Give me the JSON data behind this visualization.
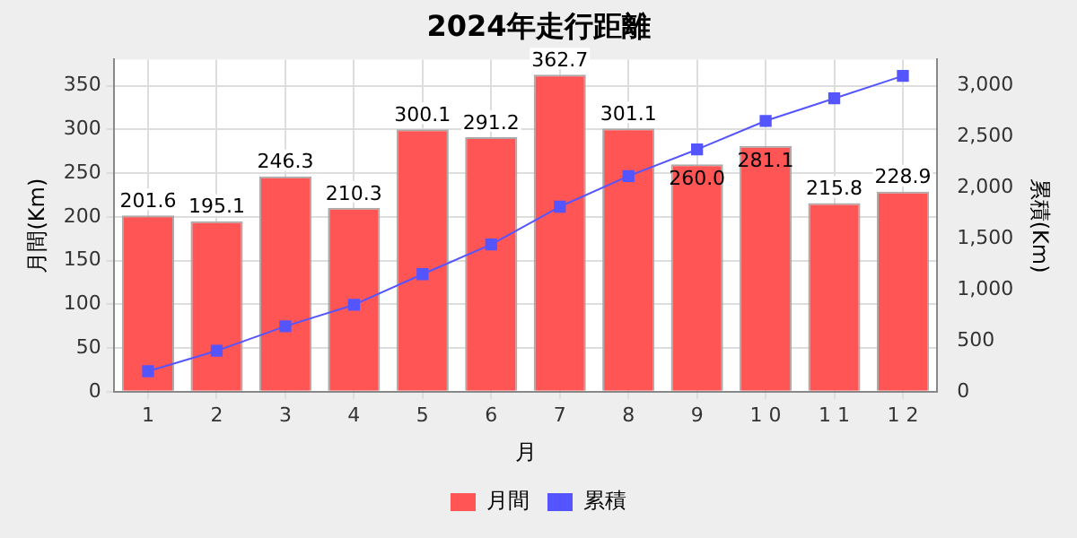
{
  "chart_data": {
    "type": "bar",
    "title": "2024年走行距離",
    "xlabel": "月",
    "ylabel": "月間(Km)",
    "y2label": "累積(Km)",
    "categories": [
      "1",
      "2",
      "3",
      "4",
      "5",
      "6",
      "7",
      "8",
      "9",
      "1 0",
      "1 1",
      "1 2"
    ],
    "series": [
      {
        "name": "月間",
        "color": "#ff5555",
        "values": [
          201.6,
          195.1,
          246.3,
          210.3,
          300.1,
          291.2,
          362.7,
          301.1,
          260.0,
          281.1,
          215.8,
          228.9
        ],
        "value_labels": [
          "201.6",
          "195.1",
          "246.3",
          "210.3",
          "300.1",
          "291.2",
          "362.7",
          "301.1",
          "260.0",
          "281.1",
          "215.8",
          "228.9"
        ]
      },
      {
        "name": "累積",
        "type": "line",
        "axis": "y2",
        "color": "#5555ff",
        "marker": "square",
        "values": [
          200,
          400,
          640,
          850,
          1150,
          1440,
          1810,
          2110,
          2370,
          2650,
          2870,
          3090
        ]
      }
    ],
    "ylim": [
      0,
      380
    ],
    "yticks": [
      0,
      50,
      100,
      150,
      200,
      250,
      300,
      350
    ],
    "y2lim": [
      0,
      3250
    ],
    "y2ticks": [
      0,
      {
        "value": 500,
        "label": "500"
      },
      {
        "value": 1000,
        "label": "1,000"
      },
      {
        "value": 1500,
        "label": "1,500"
      },
      {
        "value": 2000,
        "label": "2,000"
      },
      {
        "value": 2500,
        "label": "2,500"
      },
      {
        "value": 3000,
        "label": "3,000"
      }
    ],
    "grid": true,
    "legend": "bottom"
  }
}
